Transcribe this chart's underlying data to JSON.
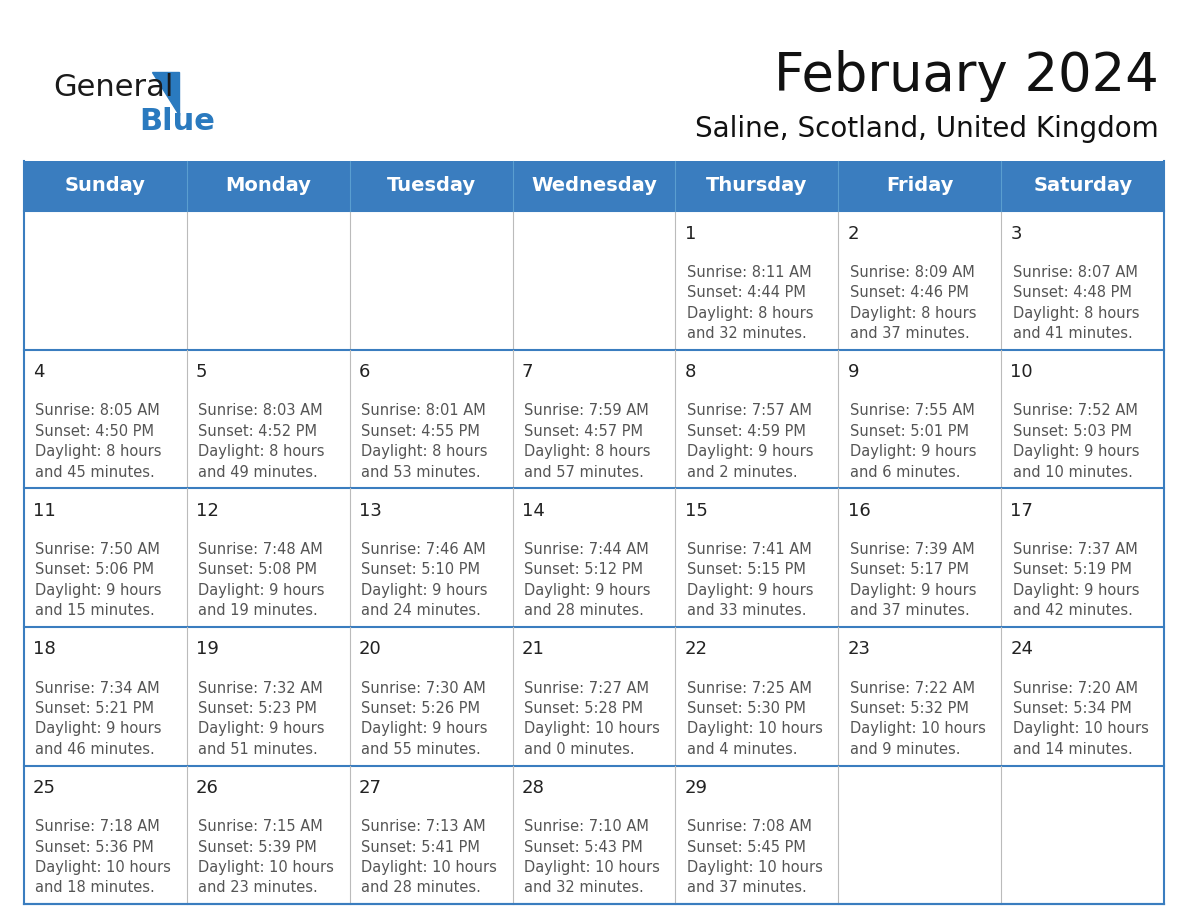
{
  "title": "February 2024",
  "subtitle": "Saline, Scotland, United Kingdom",
  "header_bg_color": "#3a7dbf",
  "header_text_color": "#ffffff",
  "border_color": "#3a7dbf",
  "row_border_color": "#3a7dbf",
  "col_border_color": "#aaaaaa",
  "text_color": "#555555",
  "day_num_color": "#222222",
  "days_of_week": [
    "Sunday",
    "Monday",
    "Tuesday",
    "Wednesday",
    "Thursday",
    "Friday",
    "Saturday"
  ],
  "calendar_data": [
    [
      null,
      null,
      null,
      null,
      {
        "day": 1,
        "sunrise": "8:11 AM",
        "sunset": "4:44 PM",
        "daylight_h": "8 hours",
        "daylight_m": "and 32 minutes."
      },
      {
        "day": 2,
        "sunrise": "8:09 AM",
        "sunset": "4:46 PM",
        "daylight_h": "8 hours",
        "daylight_m": "and 37 minutes."
      },
      {
        "day": 3,
        "sunrise": "8:07 AM",
        "sunset": "4:48 PM",
        "daylight_h": "8 hours",
        "daylight_m": "and 41 minutes."
      }
    ],
    [
      {
        "day": 4,
        "sunrise": "8:05 AM",
        "sunset": "4:50 PM",
        "daylight_h": "8 hours",
        "daylight_m": "and 45 minutes."
      },
      {
        "day": 5,
        "sunrise": "8:03 AM",
        "sunset": "4:52 PM",
        "daylight_h": "8 hours",
        "daylight_m": "and 49 minutes."
      },
      {
        "day": 6,
        "sunrise": "8:01 AM",
        "sunset": "4:55 PM",
        "daylight_h": "8 hours",
        "daylight_m": "and 53 minutes."
      },
      {
        "day": 7,
        "sunrise": "7:59 AM",
        "sunset": "4:57 PM",
        "daylight_h": "8 hours",
        "daylight_m": "and 57 minutes."
      },
      {
        "day": 8,
        "sunrise": "7:57 AM",
        "sunset": "4:59 PM",
        "daylight_h": "9 hours",
        "daylight_m": "and 2 minutes."
      },
      {
        "day": 9,
        "sunrise": "7:55 AM",
        "sunset": "5:01 PM",
        "daylight_h": "9 hours",
        "daylight_m": "and 6 minutes."
      },
      {
        "day": 10,
        "sunrise": "7:52 AM",
        "sunset": "5:03 PM",
        "daylight_h": "9 hours",
        "daylight_m": "and 10 minutes."
      }
    ],
    [
      {
        "day": 11,
        "sunrise": "7:50 AM",
        "sunset": "5:06 PM",
        "daylight_h": "9 hours",
        "daylight_m": "and 15 minutes."
      },
      {
        "day": 12,
        "sunrise": "7:48 AM",
        "sunset": "5:08 PM",
        "daylight_h": "9 hours",
        "daylight_m": "and 19 minutes."
      },
      {
        "day": 13,
        "sunrise": "7:46 AM",
        "sunset": "5:10 PM",
        "daylight_h": "9 hours",
        "daylight_m": "and 24 minutes."
      },
      {
        "day": 14,
        "sunrise": "7:44 AM",
        "sunset": "5:12 PM",
        "daylight_h": "9 hours",
        "daylight_m": "and 28 minutes."
      },
      {
        "day": 15,
        "sunrise": "7:41 AM",
        "sunset": "5:15 PM",
        "daylight_h": "9 hours",
        "daylight_m": "and 33 minutes."
      },
      {
        "day": 16,
        "sunrise": "7:39 AM",
        "sunset": "5:17 PM",
        "daylight_h": "9 hours",
        "daylight_m": "and 37 minutes."
      },
      {
        "day": 17,
        "sunrise": "7:37 AM",
        "sunset": "5:19 PM",
        "daylight_h": "9 hours",
        "daylight_m": "and 42 minutes."
      }
    ],
    [
      {
        "day": 18,
        "sunrise": "7:34 AM",
        "sunset": "5:21 PM",
        "daylight_h": "9 hours",
        "daylight_m": "and 46 minutes."
      },
      {
        "day": 19,
        "sunrise": "7:32 AM",
        "sunset": "5:23 PM",
        "daylight_h": "9 hours",
        "daylight_m": "and 51 minutes."
      },
      {
        "day": 20,
        "sunrise": "7:30 AM",
        "sunset": "5:26 PM",
        "daylight_h": "9 hours",
        "daylight_m": "and 55 minutes."
      },
      {
        "day": 21,
        "sunrise": "7:27 AM",
        "sunset": "5:28 PM",
        "daylight_h": "10 hours",
        "daylight_m": "and 0 minutes."
      },
      {
        "day": 22,
        "sunrise": "7:25 AM",
        "sunset": "5:30 PM",
        "daylight_h": "10 hours",
        "daylight_m": "and 4 minutes."
      },
      {
        "day": 23,
        "sunrise": "7:22 AM",
        "sunset": "5:32 PM",
        "daylight_h": "10 hours",
        "daylight_m": "and 9 minutes."
      },
      {
        "day": 24,
        "sunrise": "7:20 AM",
        "sunset": "5:34 PM",
        "daylight_h": "10 hours",
        "daylight_m": "and 14 minutes."
      }
    ],
    [
      {
        "day": 25,
        "sunrise": "7:18 AM",
        "sunset": "5:36 PM",
        "daylight_h": "10 hours",
        "daylight_m": "and 18 minutes."
      },
      {
        "day": 26,
        "sunrise": "7:15 AM",
        "sunset": "5:39 PM",
        "daylight_h": "10 hours",
        "daylight_m": "and 23 minutes."
      },
      {
        "day": 27,
        "sunrise": "7:13 AM",
        "sunset": "5:41 PM",
        "daylight_h": "10 hours",
        "daylight_m": "and 28 minutes."
      },
      {
        "day": 28,
        "sunrise": "7:10 AM",
        "sunset": "5:43 PM",
        "daylight_h": "10 hours",
        "daylight_m": "and 32 minutes."
      },
      {
        "day": 29,
        "sunrise": "7:08 AM",
        "sunset": "5:45 PM",
        "daylight_h": "10 hours",
        "daylight_m": "and 37 minutes."
      },
      null,
      null
    ]
  ],
  "logo_color_general": "#1a1a1a",
  "logo_color_blue": "#2a7abf",
  "logo_triangle_color": "#2a7abf",
  "title_fontsize": 38,
  "subtitle_fontsize": 20,
  "header_fontsize": 14,
  "day_num_fontsize": 13,
  "cell_text_fontsize": 10.5
}
